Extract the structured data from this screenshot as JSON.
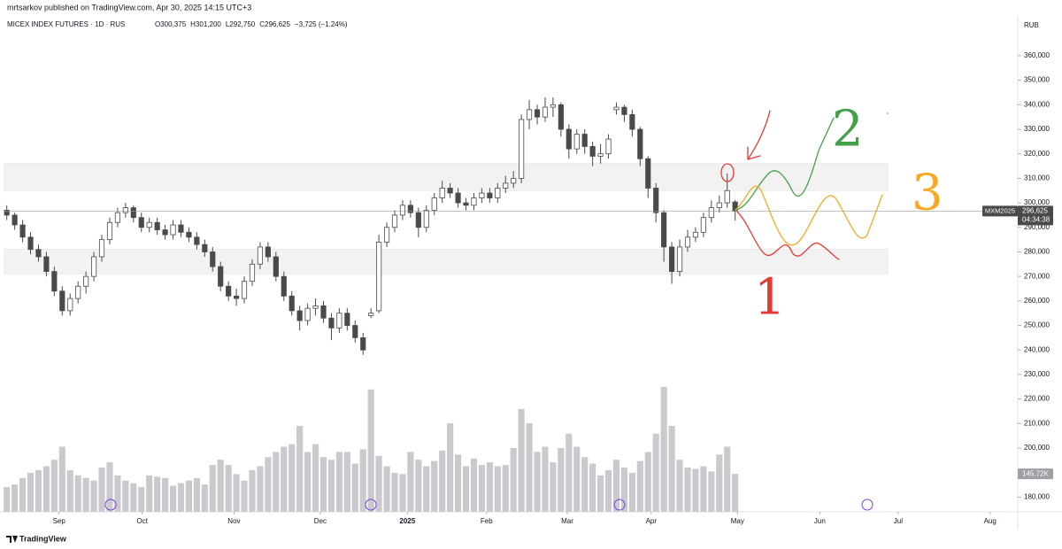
{
  "chart_data": {
    "type": "candlestick",
    "published": "mrtsarkov published on TradingView.com, Apr 30, 2025 14:15 UTC+3",
    "symbol": "MICEX INDEX FUTURES · 1D · RUS",
    "legend_values": [
      "O300,375",
      "H301,200",
      "L292,750",
      "C296,625",
      "−3,725 (−1.24%)"
    ],
    "currency": "RUB",
    "ticker": "MXM2025",
    "countdown": "04:34:38",
    "brand": "TradingView",
    "last_price": {
      "value": 296625,
      "label": "296,625"
    },
    "last_volume": {
      "value": 145.72,
      "label": "145.72K"
    },
    "ylim": [
      174000,
      375500
    ],
    "yticks": [
      {
        "value": 180000,
        "label": "180,000"
      },
      {
        "value": 190000,
        "label": "190,000"
      },
      {
        "value": 200000,
        "label": "200,000"
      },
      {
        "value": 210000,
        "label": "210,000"
      },
      {
        "value": 220000,
        "label": "220,000"
      },
      {
        "value": 230000,
        "label": "230,000"
      },
      {
        "value": 240000,
        "label": "240,000"
      },
      {
        "value": 250000,
        "label": "250,000"
      },
      {
        "value": 260000,
        "label": "260,000"
      },
      {
        "value": 270000,
        "label": "270,000"
      },
      {
        "value": 280000,
        "label": "280,000"
      },
      {
        "value": 290000,
        "label": "290,000"
      },
      {
        "value": 300000,
        "label": "300,000"
      },
      {
        "value": 310000,
        "label": "310,000"
      },
      {
        "value": 320000,
        "label": "320,000"
      },
      {
        "value": 330000,
        "label": "330,000"
      },
      {
        "value": 340000,
        "label": "340,000"
      },
      {
        "value": 350000,
        "label": "350,000"
      },
      {
        "value": 360000,
        "label": "360,000"
      }
    ],
    "xlim": [
      -0.3,
      127.7
    ],
    "xticks": [
      {
        "value": 6.6,
        "label": "Sep"
      },
      {
        "value": 17.1,
        "label": "Oct"
      },
      {
        "value": 28.7,
        "label": "Nov"
      },
      {
        "value": 39.6,
        "label": "Dec"
      },
      {
        "value": 50.6,
        "label": "2025"
      },
      {
        "value": 60.6,
        "label": "Feb"
      },
      {
        "value": 70.8,
        "label": "Mar"
      },
      {
        "value": 81.4,
        "label": "Apr"
      },
      {
        "value": 92.3,
        "label": "May"
      },
      {
        "value": 102.7,
        "label": "Jun"
      },
      {
        "value": 112.6,
        "label": "Jul"
      },
      {
        "value": 124.2,
        "label": "Aug"
      }
    ],
    "ohlc": [
      [
        297000,
        299000,
        293000,
        295000
      ],
      [
        295000,
        296000,
        289000,
        291000
      ],
      [
        291000,
        293000,
        284000,
        286000
      ],
      [
        286000,
        288000,
        279000,
        281000
      ],
      [
        281000,
        283000,
        276000,
        278000
      ],
      [
        278000,
        280000,
        270000,
        272000
      ],
      [
        272000,
        274000,
        262000,
        264000
      ],
      [
        264000,
        266000,
        254000,
        256000
      ],
      [
        256000,
        263000,
        254000,
        261000
      ],
      [
        261000,
        268000,
        259000,
        266000
      ],
      [
        266000,
        272000,
        263000,
        270000
      ],
      [
        270000,
        280000,
        268000,
        278000
      ],
      [
        278000,
        287000,
        276000,
        285000
      ],
      [
        285000,
        294000,
        283000,
        292000
      ],
      [
        292000,
        298000,
        290000,
        296000
      ],
      [
        296000,
        300000,
        294000,
        298000
      ],
      [
        298000,
        299000,
        292000,
        294000
      ],
      [
        294000,
        296000,
        288000,
        290000
      ],
      [
        290000,
        294000,
        288000,
        292000
      ],
      [
        292000,
        294000,
        287000,
        289000
      ],
      [
        289000,
        291000,
        285000,
        287000
      ],
      [
        287000,
        293000,
        285000,
        291000
      ],
      [
        291000,
        293000,
        286000,
        288000
      ],
      [
        288000,
        290000,
        284000,
        286000
      ],
      [
        286000,
        288000,
        281000,
        283000
      ],
      [
        283000,
        285000,
        278000,
        280000
      ],
      [
        280000,
        282000,
        272000,
        274000
      ],
      [
        274000,
        276000,
        264000,
        266000
      ],
      [
        266000,
        268000,
        260000,
        262000
      ],
      [
        262000,
        265000,
        258000,
        261000
      ],
      [
        261000,
        270000,
        259000,
        268000
      ],
      [
        268000,
        277000,
        266000,
        275000
      ],
      [
        275000,
        284000,
        273000,
        282000
      ],
      [
        282000,
        284000,
        276000,
        278000
      ],
      [
        278000,
        280000,
        268000,
        270000
      ],
      [
        270000,
        272000,
        260000,
        262000
      ],
      [
        262000,
        264000,
        254000,
        256000
      ],
      [
        256000,
        258000,
        248000,
        252000
      ],
      [
        252000,
        259000,
        250000,
        257000
      ],
      [
        257000,
        261000,
        254000,
        258000
      ],
      [
        258000,
        260000,
        251000,
        253000
      ],
      [
        253000,
        255000,
        244000,
        249000
      ],
      [
        249000,
        257000,
        247000,
        255000
      ],
      [
        255000,
        257000,
        248000,
        250000
      ],
      [
        250000,
        252000,
        243000,
        245000
      ],
      [
        245000,
        247000,
        238000,
        240000
      ],
      [
        254000,
        257000,
        253000,
        255000
      ],
      [
        256000,
        287000,
        255000,
        284000
      ],
      [
        284000,
        292000,
        282000,
        290000
      ],
      [
        290000,
        297000,
        288000,
        295000
      ],
      [
        295000,
        301000,
        293000,
        299000
      ],
      [
        299000,
        301000,
        294000,
        296000
      ],
      [
        296000,
        298000,
        286000,
        290000
      ],
      [
        290000,
        299000,
        288000,
        297000
      ],
      [
        297000,
        304000,
        295000,
        302000
      ],
      [
        302000,
        309000,
        300000,
        306000
      ],
      [
        306000,
        308000,
        302000,
        304000
      ],
      [
        304000,
        306000,
        298000,
        300000
      ],
      [
        300000,
        302000,
        297000,
        299000
      ],
      [
        299000,
        304000,
        297000,
        302000
      ],
      [
        302000,
        306000,
        300000,
        304000
      ],
      [
        304000,
        306000,
        300000,
        302000
      ],
      [
        302000,
        308000,
        300000,
        306000
      ],
      [
        306000,
        311000,
        304000,
        308000
      ],
      [
        308000,
        313000,
        306000,
        310000
      ],
      [
        310000,
        336000,
        308000,
        334000
      ],
      [
        334000,
        342000,
        330000,
        338000
      ],
      [
        338000,
        340000,
        332000,
        335000
      ],
      [
        335000,
        343000,
        333000,
        339000
      ],
      [
        339000,
        343000,
        335000,
        340000
      ],
      [
        340000,
        341000,
        327000,
        330000
      ],
      [
        330000,
        332000,
        318000,
        322000
      ],
      [
        322000,
        330000,
        320000,
        328000
      ],
      [
        328000,
        330000,
        320000,
        323000
      ],
      [
        323000,
        325000,
        315000,
        319000
      ],
      [
        319000,
        324000,
        316000,
        320000
      ],
      [
        320000,
        328000,
        318000,
        326000
      ],
      [
        338000,
        341000,
        336000,
        339000
      ],
      [
        339000,
        340000,
        333000,
        336000
      ],
      [
        336000,
        338000,
        327000,
        330000
      ],
      [
        330000,
        331000,
        315000,
        318000
      ],
      [
        318000,
        319000,
        302000,
        306000
      ],
      [
        306000,
        308000,
        292000,
        296000
      ],
      [
        296000,
        297000,
        276000,
        282000
      ],
      [
        282000,
        284000,
        267000,
        272000
      ],
      [
        272000,
        285000,
        270000,
        282000
      ],
      [
        282000,
        289000,
        280000,
        286000
      ],
      [
        286000,
        290000,
        284000,
        288000
      ],
      [
        288000,
        296000,
        286000,
        294000
      ],
      [
        294000,
        301000,
        292000,
        298000
      ],
      [
        298000,
        303000,
        296000,
        300000
      ],
      [
        300000,
        312000,
        298000,
        305000
      ],
      [
        300375,
        301200,
        292750,
        296625
      ]
    ],
    "volume_ylim": [
      0,
      500
    ],
    "volume": [
      95,
      105,
      130,
      150,
      160,
      175,
      200,
      250,
      160,
      140,
      130,
      120,
      170,
      190,
      140,
      120,
      110,
      95,
      140,
      135,
      130,
      100,
      110,
      120,
      130,
      105,
      180,
      200,
      180,
      145,
      120,
      160,
      175,
      210,
      230,
      250,
      260,
      330,
      230,
      260,
      210,
      200,
      230,
      230,
      185,
      240,
      470,
      215,
      175,
      150,
      145,
      230,
      200,
      175,
      195,
      235,
      340,
      220,
      175,
      205,
      180,
      190,
      175,
      180,
      245,
      395,
      340,
      230,
      250,
      190,
      245,
      300,
      250,
      210,
      185,
      140,
      160,
      200,
      170,
      150,
      195,
      230,
      300,
      480,
      330,
      200,
      170,
      165,
      175,
      155,
      220,
      250,
      145.72
    ],
    "zones": [
      [
        271000,
        281000
      ],
      [
        305000,
        316000
      ]
    ],
    "annotations": [
      "1",
      "2",
      "3"
    ],
    "colors": {
      "up_fill": "#ffffff",
      "down_fill": "#4a4a4a",
      "wick": "#4a4a4a",
      "volume": "#c9c9ce",
      "zone": "#f2f2f2"
    }
  }
}
